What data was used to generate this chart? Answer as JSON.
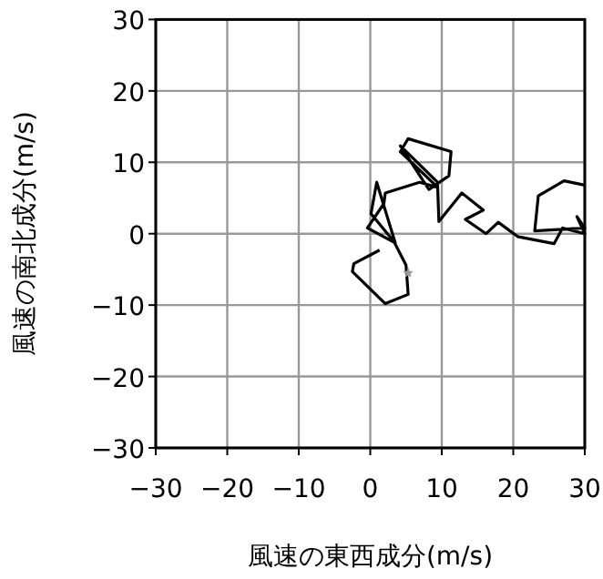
{
  "chart_data": {
    "type": "line",
    "xlabel": "風速の東西成分(m/s)",
    "ylabel": "風速の南北成分(m/s)",
    "xlim": [
      -30,
      30
    ],
    "ylim": [
      -30,
      30
    ],
    "xticks": [
      -30,
      -20,
      -10,
      0,
      10,
      20,
      30
    ],
    "yticks": [
      -30,
      -20,
      -10,
      0,
      10,
      20,
      30
    ],
    "grid": true,
    "series": [
      {
        "color": "#000000",
        "line_style": "solid",
        "x": [
          1.3,
          -2.3,
          -2.5,
          2.1,
          5.3,
          5.0,
          3.3,
          0.1,
          0.9,
          3.5,
          -0.4,
          1.9,
          2.1,
          6.9,
          9.4,
          4.2,
          5.3,
          11.3,
          11.0,
          8.2,
          4.2,
          9.4,
          9.6,
          12.8,
          15.8,
          13.3,
          16.2,
          17.9,
          20.6,
          25.7,
          26.9,
          30.0,
          28.9,
          30.0,
          23.0,
          23.5,
          27.1,
          30.0
        ],
        "values": [
          -2.3,
          -4.2,
          -5.3,
          -9.8,
          -8.5,
          -4.4,
          -1.1,
          2.8,
          7.2,
          -1.3,
          0.8,
          4.2,
          5.7,
          7.2,
          6.5,
          11.5,
          13.3,
          11.5,
          8.1,
          6.2,
          12.3,
          7.2,
          1.7,
          5.7,
          3.3,
          2.0,
          0.0,
          1.6,
          -0.4,
          -1.4,
          0.8,
          0.0,
          2.4,
          0.8,
          0.4,
          5.3,
          7.4,
          6.8
        ]
      },
      {
        "type": "scatter",
        "color": "#999999",
        "marker": "star",
        "x": [
          5.3
        ],
        "values": [
          -5.5
        ]
      }
    ]
  }
}
